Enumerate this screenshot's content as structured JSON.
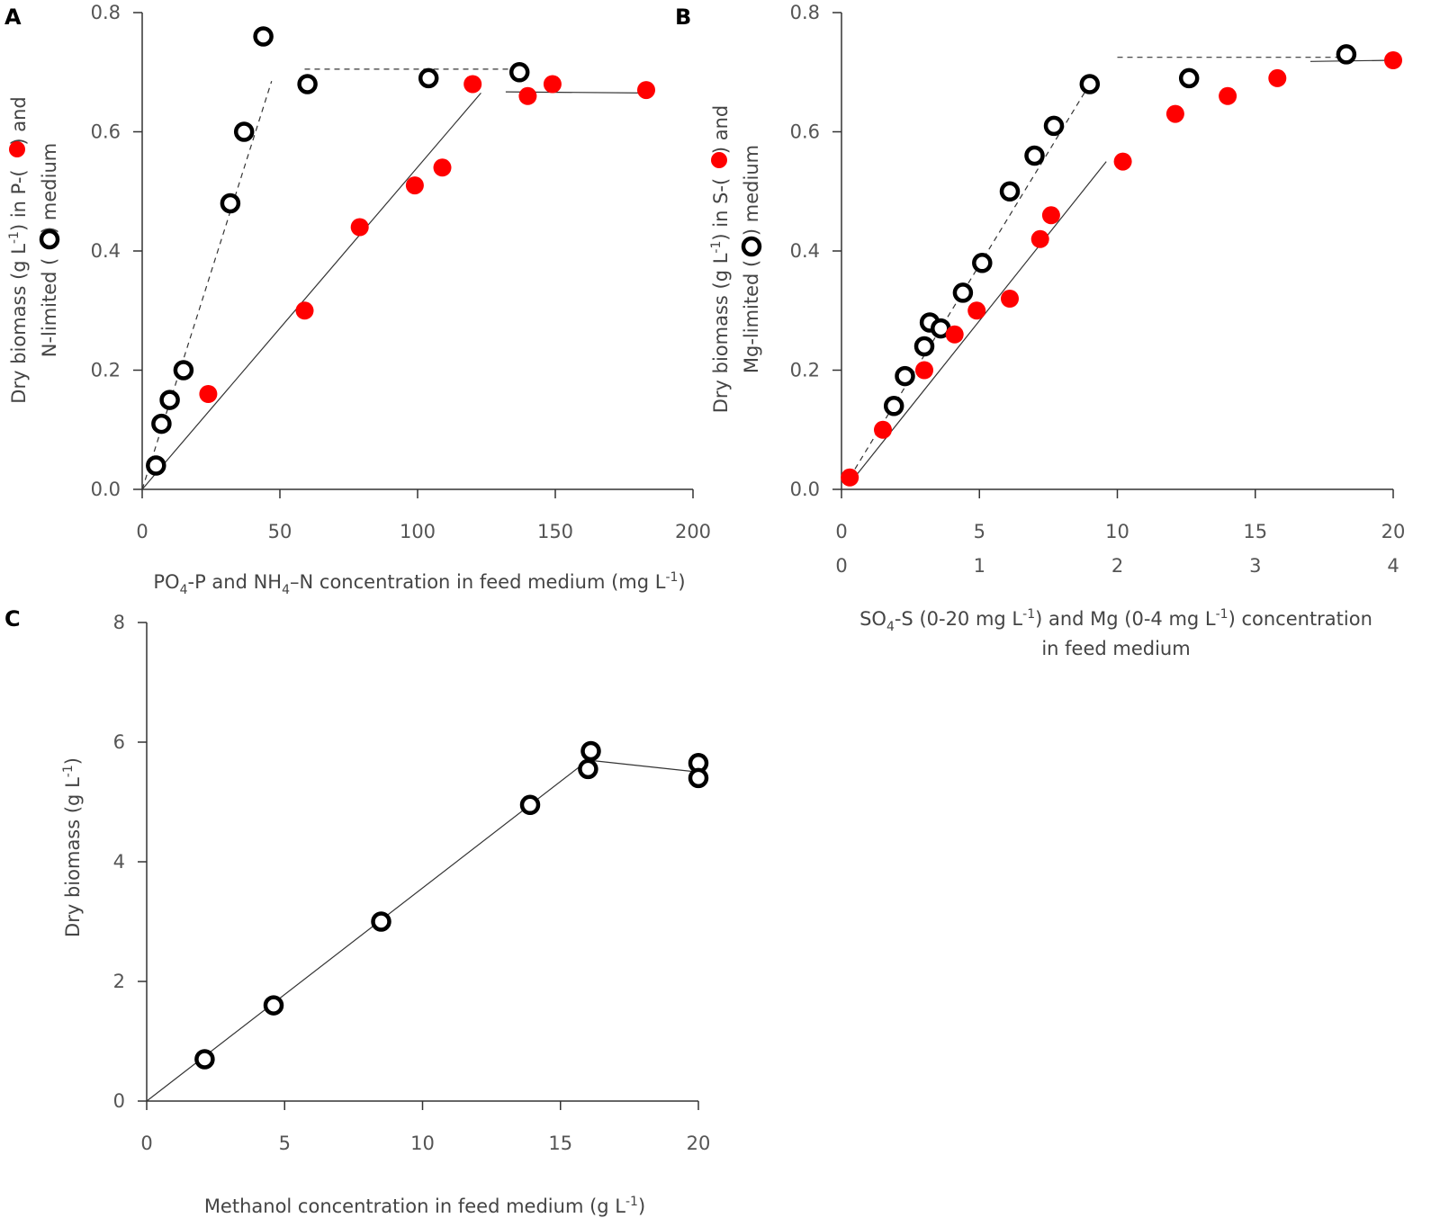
{
  "chart_data": [
    {
      "panel": "A",
      "type": "scatter",
      "xlabel_parts": [
        "PO",
        "4",
        "-P and NH",
        "4",
        "–N concentration in feed medium (mg L",
        "-1",
        ")"
      ],
      "ylabel_line1_parts": [
        "Dry biomass (g L",
        "-1",
        ") in P-(",
        ") and"
      ],
      "ylabel_line2_parts": [
        "N-limited (",
        ") medium"
      ],
      "xlim": [
        0,
        200
      ],
      "ylim": [
        0,
        0.8
      ],
      "xticks": [
        0,
        50,
        100,
        150,
        200
      ],
      "xtick_labels": [
        "0",
        "50",
        "100",
        "150",
        "200"
      ],
      "yticks": [
        0,
        0.2,
        0.4,
        0.6,
        0.8
      ],
      "ytick_labels": [
        "0.0",
        "0.2",
        "0.4",
        "0.6",
        "0.8"
      ],
      "series": [
        {
          "name": "N-limited",
          "marker": "open-circle",
          "x": [
            5,
            7,
            10,
            15,
            32,
            37,
            44,
            60,
            104,
            137
          ],
          "y": [
            0.04,
            0.11,
            0.15,
            0.2,
            0.48,
            0.6,
            0.76,
            0.68,
            0.69,
            0.7
          ]
        },
        {
          "name": "P-limited",
          "marker": "filled-circle",
          "color": "#ff0000",
          "x": [
            24,
            59,
            79,
            99,
            109,
            120,
            140,
            149,
            183
          ],
          "y": [
            0.16,
            0.3,
            0.44,
            0.51,
            0.54,
            0.68,
            0.66,
            0.68,
            0.67
          ]
        }
      ],
      "fit_lines": [
        {
          "style": "dashed",
          "x": [
            0,
            47
          ],
          "y": [
            0,
            0.685
          ]
        },
        {
          "style": "dashed",
          "x": [
            59,
            137
          ],
          "y": [
            0.705,
            0.705
          ]
        },
        {
          "style": "solid",
          "x": [
            0,
            123
          ],
          "y": [
            0,
            0.665
          ]
        },
        {
          "style": "solid",
          "x": [
            132,
            183
          ],
          "y": [
            0.667,
            0.665
          ]
        }
      ]
    },
    {
      "panel": "B",
      "type": "scatter",
      "xlabel_line1_parts": [
        "SO",
        "4",
        "-S  (0-20 mg L",
        "-1",
        ") and Mg (0-4 mg L",
        "-1",
        ") concentration"
      ],
      "xlabel_line2": "in feed medium",
      "ylabel_line1_parts": [
        "Dry biomass (g L",
        "-1",
        ") in S-(",
        ") and"
      ],
      "ylabel_line2_parts": [
        "Mg-limited (",
        ") medium"
      ],
      "xlim": [
        0,
        20
      ],
      "ylim": [
        0,
        0.8
      ],
      "xticks": [
        0,
        5,
        10,
        15,
        20
      ],
      "xtick_labels": [
        "0",
        "5",
        "10",
        "15",
        "20"
      ],
      "xtick2_labels": [
        "0",
        "1",
        "2",
        "3",
        "4"
      ],
      "yticks": [
        0,
        0.2,
        0.4,
        0.6,
        0.8
      ],
      "ytick_labels": [
        "0.0",
        "0.2",
        "0.4",
        "0.6",
        "0.8"
      ],
      "series": [
        {
          "name": "Mg-limited",
          "marker": "open-circle",
          "x": [
            1.9,
            2.3,
            3.0,
            3.2,
            3.6,
            4.4,
            5.1,
            6.1,
            7.0,
            7.7,
            9.0,
            12.6,
            18.3
          ],
          "y": [
            0.14,
            0.19,
            0.24,
            0.28,
            0.27,
            0.33,
            0.38,
            0.5,
            0.56,
            0.61,
            0.68,
            0.69,
            0.73
          ]
        },
        {
          "name": "S-limited",
          "marker": "filled-circle",
          "color": "#ff0000",
          "x": [
            0.3,
            1.5,
            3.0,
            4.1,
            4.9,
            6.1,
            7.2,
            7.6,
            10.2,
            12.1,
            14.0,
            15.8,
            20.0
          ],
          "y": [
            0.02,
            0.1,
            0.2,
            0.26,
            0.3,
            0.32,
            0.42,
            0.46,
            0.55,
            0.63,
            0.66,
            0.69,
            0.72
          ]
        }
      ],
      "fit_lines": [
        {
          "style": "dashed",
          "x": [
            0.3,
            9.0
          ],
          "y": [
            0.02,
            0.68
          ]
        },
        {
          "style": "dashed",
          "x": [
            10.0,
            18.3
          ],
          "y": [
            0.725,
            0.725
          ]
        },
        {
          "style": "solid",
          "x": [
            0.3,
            9.6
          ],
          "y": [
            0.01,
            0.55
          ]
        },
        {
          "style": "solid",
          "x": [
            17.0,
            20.0
          ],
          "y": [
            0.718,
            0.72
          ]
        }
      ]
    },
    {
      "panel": "C",
      "type": "line",
      "xlabel_parts": [
        "Methanol concentration in feed medium  (g L",
        "-1",
        ")"
      ],
      "ylabel_parts": [
        "Dry biomass (g L",
        "-1",
        ")"
      ],
      "xlim": [
        0,
        20
      ],
      "ylim": [
        0,
        8
      ],
      "xticks": [
        0,
        5,
        10,
        15,
        20
      ],
      "xtick_labels": [
        "0",
        "5",
        "10",
        "15",
        "20"
      ],
      "yticks": [
        0,
        2,
        4,
        6,
        8
      ],
      "ytick_labels": [
        "0",
        "2",
        "4",
        "6",
        "8"
      ],
      "series": [
        {
          "name": "Dry biomass",
          "marker": "open-circle",
          "x": [
            2.1,
            4.6,
            8.5,
            13.9,
            16.0,
            16.1,
            20.0,
            20.0
          ],
          "y": [
            0.7,
            1.6,
            3.0,
            4.95,
            5.55,
            5.85,
            5.65,
            5.4
          ]
        }
      ],
      "fit_lines": [
        {
          "style": "solid",
          "x": [
            0,
            16.0
          ],
          "y": [
            0,
            5.7
          ]
        },
        {
          "style": "solid",
          "x": [
            16.0,
            20.0
          ],
          "y": [
            5.7,
            5.5
          ]
        }
      ]
    }
  ]
}
